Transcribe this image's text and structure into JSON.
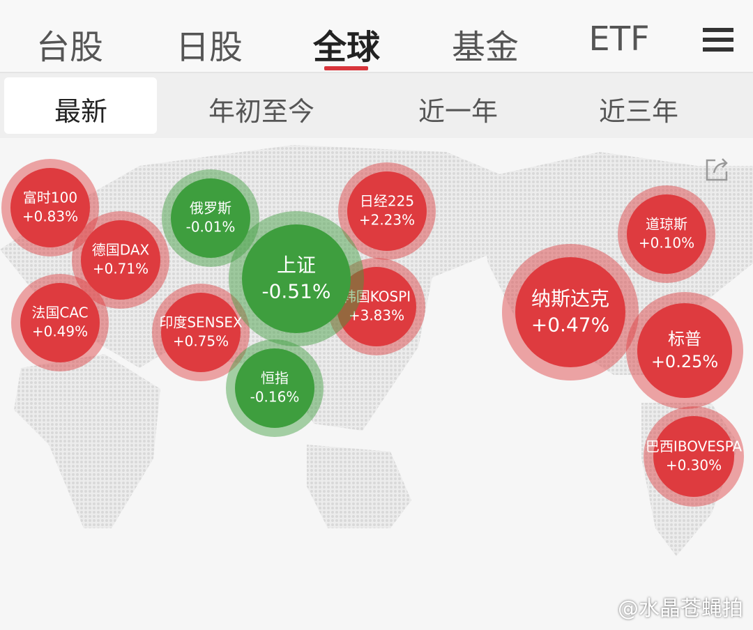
{
  "top_tabs": [
    "台股",
    "日股",
    "全球",
    "基金",
    "ETF"
  ],
  "period_tabs": [
    "最新",
    "年初至今",
    "近一年",
    "近三年"
  ],
  "indices": [
    {
      "name": "富时100",
      "change": "+0.83%",
      "color": "#de3b3f"
    },
    {
      "name": "德国DAX",
      "change": "+0.71%",
      "color": "#de3b3f"
    },
    {
      "name": "法国CAC",
      "change": "+0.49%",
      "color": "#de3b3f"
    },
    {
      "name": "俄罗斯",
      "change": "-0.01%",
      "color": "#3e9e3e"
    },
    {
      "name": "日经225",
      "change": "+2.23%",
      "color": "#de3b3f"
    },
    {
      "name": "韩国KOSPI",
      "change": "+3.83%",
      "color": "#de3b3f"
    },
    {
      "name": "印度SENSEX",
      "change": "+0.75%",
      "color": "#de3b3f"
    },
    {
      "name": "恒指",
      "change": "-0.16%",
      "color": "#3e9e3e"
    },
    {
      "name": "上证",
      "change": "-0.51%",
      "color": "#3e9e3e"
    },
    {
      "name": "道琼斯",
      "change": "+0.10%",
      "color": "#de3b3f"
    },
    {
      "name": "纳斯达克",
      "change": "+0.47%",
      "color": "#de3b3f"
    },
    {
      "name": "标普",
      "change": "+0.25%",
      "color": "#de3b3f"
    },
    {
      "name": "巴西IBOVESPA",
      "change": "+0.30%",
      "color": "#de3b3f"
    }
  ],
  "watermark": "@水晶苍蝇拍"
}
